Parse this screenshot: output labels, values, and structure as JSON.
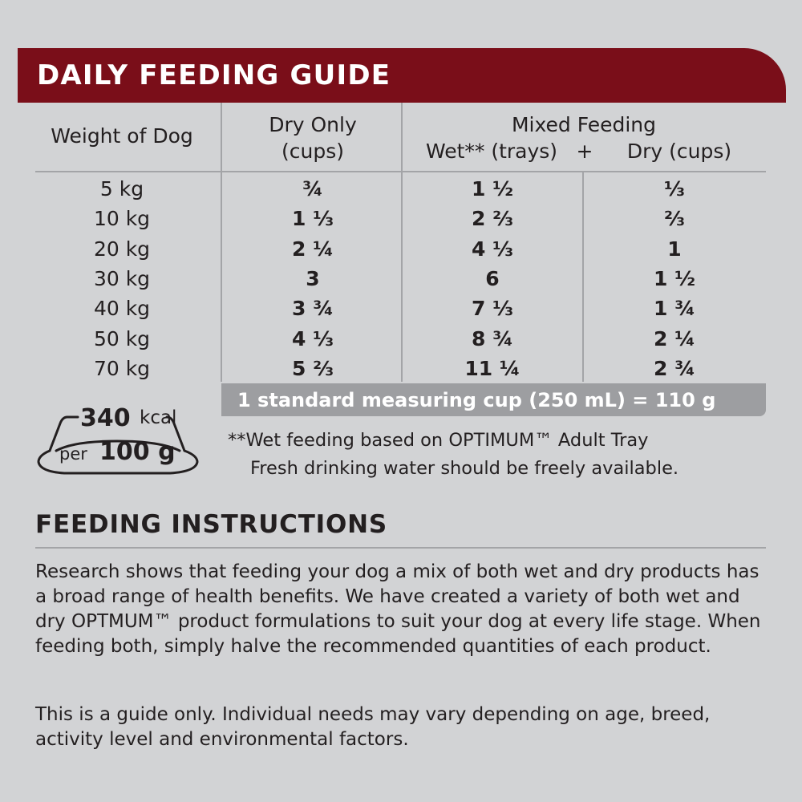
{
  "guide": {
    "title": "DAILY FEEDING GUIDE",
    "headers": {
      "weight": "Weight of Dog",
      "dry_line1": "Dry Only",
      "dry_line2": "(cups)",
      "mixed_line1": "Mixed Feeding",
      "wet": "Wet** (trays)",
      "plus": "+",
      "mixed_dry": "Dry (cups)"
    },
    "rows": [
      {
        "weight": "5 kg",
        "dry": "¾",
        "wet": "1 ½",
        "mixed_dry": "⅓"
      },
      {
        "weight": "10 kg",
        "dry": "1 ⅓",
        "wet": "2 ⅔",
        "mixed_dry": "⅔"
      },
      {
        "weight": "20 kg",
        "dry": "2 ¼",
        "wet": "4 ⅓",
        "mixed_dry": "1"
      },
      {
        "weight": "30 kg",
        "dry": "3",
        "wet": "6",
        "mixed_dry": "1 ½"
      },
      {
        "weight": "40 kg",
        "dry": "3 ¾",
        "wet": "7 ⅓",
        "mixed_dry": "1 ¾"
      },
      {
        "weight": "50 kg",
        "dry": "4 ⅓",
        "wet": "8 ¾",
        "mixed_dry": "2 ¼"
      },
      {
        "weight": "70 kg",
        "dry": "5 ⅔",
        "wet": "11 ¼",
        "mixed_dry": "2 ¾"
      }
    ],
    "cup_note": "1 standard measuring cup (250 mL) = 110 g"
  },
  "energy": {
    "value": "340",
    "unit": "kcal",
    "per": "per",
    "amount": "100 g",
    "icon": "bowl-icon"
  },
  "footnotes": {
    "wet_note": "**Wet feeding based on OPTIMUM™ Adult Tray",
    "water_note": "Fresh drinking water should be freely available."
  },
  "instructions": {
    "title": "FEEDING INSTRUCTIONS",
    "para1": "Research shows that feeding your dog a mix of both wet and dry products has a broad range of health benefits. We have created a variety of both wet and dry OPTMUM™ product formulations to suit your dog at every life stage. When feeding both, simply halve the recommended quantities of each product.",
    "para2": "This is a guide only. Individual needs may vary depending on age, breed, activity level and environmental factors."
  },
  "colors": {
    "banner": "#7a0e19",
    "background": "#d2d3d5",
    "rule": "#a3a4a7",
    "note_bar": "#9d9ea1"
  }
}
